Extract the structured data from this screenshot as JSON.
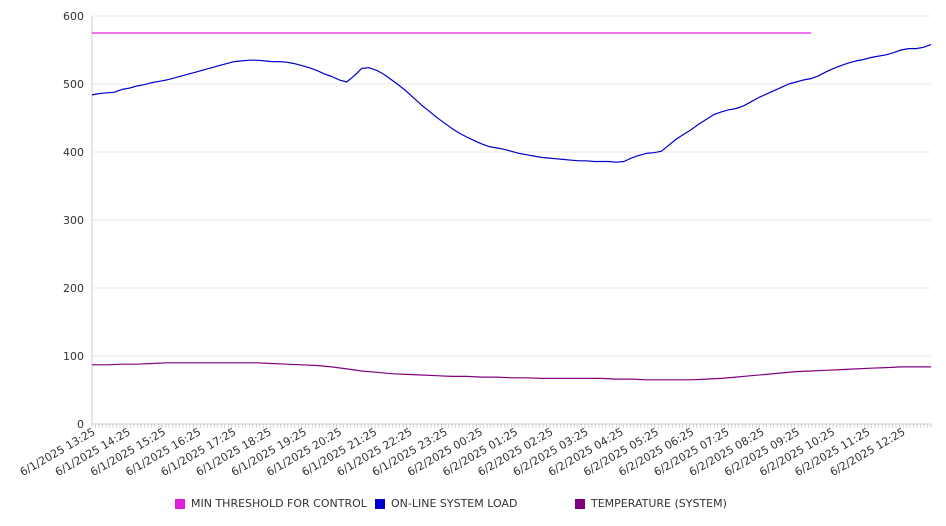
{
  "chart_data": {
    "type": "line",
    "ylim": [
      0,
      600
    ],
    "y_ticks": [
      0,
      100,
      200,
      300,
      400,
      500,
      600
    ],
    "x_tick_labels": [
      "6/1/2025 13:25",
      "6/1/2025 14:25",
      "6/1/2025 15:25",
      "6/1/2025 16:25",
      "6/1/2025 17:25",
      "6/1/2025 18:25",
      "6/1/2025 19:25",
      "6/1/2025 20:25",
      "6/1/2025 21:25",
      "6/1/2025 22:25",
      "6/1/2025 23:25",
      "6/2/2025 00:25",
      "6/2/2025 01:25",
      "6/2/2025 02:25",
      "6/2/2025 03:25",
      "6/2/2025 04:25",
      "6/2/2025 05:25",
      "6/2/2025 06:25",
      "6/2/2025 07:25",
      "6/2/2025 08:25",
      "6/2/2025 09:25",
      "6/2/2025 10:25",
      "6/2/2025 11:25",
      "6/2/2025 12:25"
    ],
    "grid": true,
    "legend_position": "bottom",
    "series": [
      {
        "name": "MIN THRESHOLD FOR CONTROL",
        "color": "#e020e0",
        "points": [
          [
            0,
            575
          ],
          [
            24,
            575
          ]
        ]
      },
      {
        "name": "ON-LINE SYSTEM LOAD",
        "color": "#0000cc",
        "points": [
          [
            0,
            484
          ],
          [
            0.25,
            486
          ],
          [
            0.5,
            487
          ],
          [
            0.75,
            488
          ],
          [
            1,
            492
          ],
          [
            1.25,
            494
          ],
          [
            1.5,
            497
          ],
          [
            1.75,
            499
          ],
          [
            2,
            502
          ],
          [
            2.25,
            504
          ],
          [
            2.5,
            506
          ],
          [
            2.75,
            509
          ],
          [
            3,
            512
          ],
          [
            3.25,
            515
          ],
          [
            3.5,
            518
          ],
          [
            3.75,
            521
          ],
          [
            4,
            524
          ],
          [
            4.25,
            527
          ],
          [
            4.5,
            530
          ],
          [
            4.75,
            533
          ],
          [
            5,
            534
          ],
          [
            5.25,
            535
          ],
          [
            5.5,
            535
          ],
          [
            5.75,
            534
          ],
          [
            6,
            533
          ],
          [
            6.25,
            533
          ],
          [
            6.5,
            532
          ],
          [
            6.75,
            530
          ],
          [
            7,
            527
          ],
          [
            7.25,
            524
          ],
          [
            7.5,
            520
          ],
          [
            7.75,
            515
          ],
          [
            8,
            511
          ],
          [
            8.25,
            506
          ],
          [
            8.5,
            503
          ],
          [
            8.75,
            512
          ],
          [
            9,
            523
          ],
          [
            9.25,
            524
          ],
          [
            9.5,
            520
          ],
          [
            9.75,
            514
          ],
          [
            10,
            506
          ],
          [
            10.25,
            498
          ],
          [
            10.5,
            489
          ],
          [
            10.75,
            479
          ],
          [
            11,
            469
          ],
          [
            11.25,
            460
          ],
          [
            11.5,
            451
          ],
          [
            11.75,
            443
          ],
          [
            12,
            435
          ],
          [
            12.25,
            428
          ],
          [
            12.5,
            422
          ],
          [
            12.75,
            417
          ],
          [
            13,
            412
          ],
          [
            13.25,
            408
          ],
          [
            13.5,
            406
          ],
          [
            13.75,
            404
          ],
          [
            14,
            401
          ],
          [
            14.25,
            398
          ],
          [
            14.5,
            396
          ],
          [
            14.75,
            394
          ],
          [
            15,
            392
          ],
          [
            15.25,
            391
          ],
          [
            15.5,
            390
          ],
          [
            15.75,
            389
          ],
          [
            16,
            388
          ],
          [
            16.25,
            387
          ],
          [
            16.5,
            387
          ],
          [
            16.75,
            386
          ],
          [
            17,
            386
          ],
          [
            17.25,
            386
          ],
          [
            17.5,
            385
          ],
          [
            17.75,
            386
          ],
          [
            18,
            391
          ],
          [
            18.25,
            395
          ],
          [
            18.5,
            398
          ],
          [
            18.75,
            399
          ],
          [
            19,
            401
          ],
          [
            19.25,
            410
          ],
          [
            19.5,
            419
          ],
          [
            19.75,
            426
          ],
          [
            20,
            433
          ],
          [
            20.25,
            441
          ],
          [
            20.5,
            448
          ],
          [
            20.75,
            455
          ],
          [
            21,
            459
          ],
          [
            21.25,
            462
          ],
          [
            21.5,
            464
          ],
          [
            21.75,
            468
          ],
          [
            22,
            474
          ],
          [
            22.25,
            480
          ],
          [
            22.5,
            485
          ],
          [
            22.75,
            490
          ],
          [
            23,
            495
          ],
          [
            23.25,
            500
          ],
          [
            23.5,
            503
          ],
          [
            23.75,
            506
          ],
          [
            24,
            508
          ],
          [
            24.25,
            512
          ],
          [
            24.5,
            518
          ],
          [
            24.75,
            523
          ],
          [
            25,
            527
          ],
          [
            25.25,
            531
          ],
          [
            25.5,
            534
          ],
          [
            25.75,
            536
          ],
          [
            26,
            539
          ],
          [
            26.25,
            541
          ],
          [
            26.5,
            543
          ],
          [
            26.75,
            546
          ],
          [
            27,
            550
          ],
          [
            27.25,
            552
          ],
          [
            27.5,
            552
          ],
          [
            27.75,
            554
          ],
          [
            28,
            558
          ]
        ]
      },
      {
        "name": "TEMPERATURE (SYSTEM)",
        "color": "#800080",
        "points": [
          [
            0,
            87
          ],
          [
            0.5,
            87
          ],
          [
            1,
            88
          ],
          [
            1.5,
            88
          ],
          [
            2,
            89
          ],
          [
            2.5,
            90
          ],
          [
            3,
            90
          ],
          [
            4,
            90
          ],
          [
            5,
            90
          ],
          [
            5.5,
            90
          ],
          [
            6,
            89
          ],
          [
            6.5,
            88
          ],
          [
            7,
            87
          ],
          [
            7.5,
            86
          ],
          [
            8,
            84
          ],
          [
            8.5,
            81
          ],
          [
            9,
            78
          ],
          [
            9.5,
            76
          ],
          [
            10,
            74
          ],
          [
            10.5,
            73
          ],
          [
            11,
            72
          ],
          [
            11.5,
            71
          ],
          [
            12,
            70
          ],
          [
            12.5,
            70
          ],
          [
            13,
            69
          ],
          [
            13.5,
            69
          ],
          [
            14,
            68
          ],
          [
            14.5,
            68
          ],
          [
            15,
            67
          ],
          [
            16,
            67
          ],
          [
            17,
            67
          ],
          [
            17.5,
            66
          ],
          [
            18,
            66
          ],
          [
            18.5,
            65
          ],
          [
            19,
            65
          ],
          [
            19.5,
            65
          ],
          [
            20,
            65
          ],
          [
            20.5,
            66
          ],
          [
            21,
            67
          ],
          [
            21.5,
            69
          ],
          [
            22,
            71
          ],
          [
            22.5,
            73
          ],
          [
            23,
            75
          ],
          [
            23.5,
            77
          ],
          [
            24,
            78
          ],
          [
            24.5,
            79
          ],
          [
            25,
            80
          ],
          [
            25.5,
            81
          ],
          [
            26,
            82
          ],
          [
            26.5,
            83
          ],
          [
            27,
            84
          ],
          [
            27.5,
            84
          ],
          [
            28,
            84
          ]
        ]
      }
    ]
  },
  "legend": {
    "items": [
      {
        "label": "MIN THRESHOLD FOR CONTROL",
        "color": "#e020e0"
      },
      {
        "label": "ON-LINE SYSTEM LOAD",
        "color": "#0000cc"
      },
      {
        "label": "TEMPERATURE (SYSTEM)",
        "color": "#800080"
      }
    ]
  }
}
